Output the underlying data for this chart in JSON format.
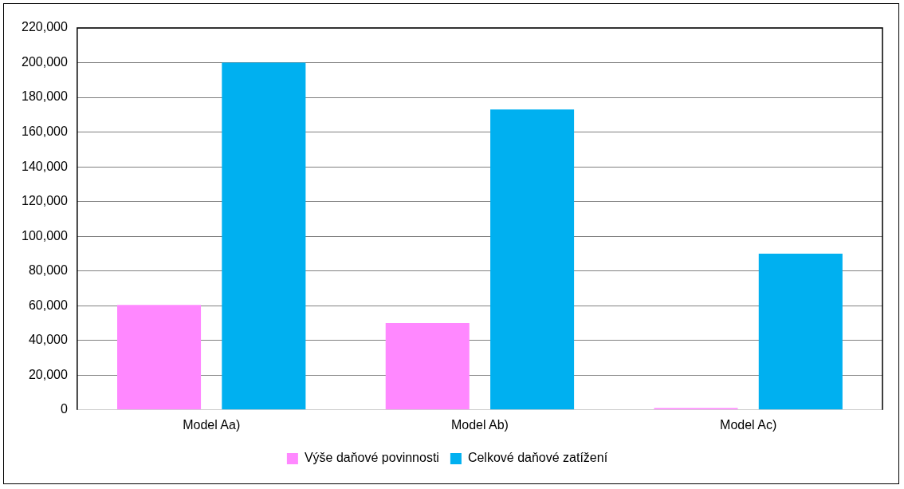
{
  "chart_data": {
    "type": "bar",
    "categories": [
      "Model Aa)",
      "Model Ab)",
      "Model Ac)"
    ],
    "series": [
      {
        "name": "Výše daňové povinnosti",
        "color": "#ff88ff",
        "values": [
          60500,
          50000,
          1000
        ]
      },
      {
        "name": "Celkové daňové zatížení",
        "color": "#00b0f0",
        "values": [
          200000,
          173000,
          90000
        ]
      }
    ],
    "ylim": [
      0,
      220000
    ],
    "yticks": [
      {
        "value": 0,
        "label": "0"
      },
      {
        "value": 20000,
        "label": "20,000"
      },
      {
        "value": 40000,
        "label": "40,000"
      },
      {
        "value": 60000,
        "label": "60,000"
      },
      {
        "value": 80000,
        "label": "80,000"
      },
      {
        "value": 100000,
        "label": "100,000"
      },
      {
        "value": 120000,
        "label": "120,000"
      },
      {
        "value": 140000,
        "label": "140,000"
      },
      {
        "value": 160000,
        "label": "160,000"
      },
      {
        "value": 180000,
        "label": "180,000"
      },
      {
        "value": 200000,
        "label": "200,000"
      },
      {
        "value": 220000,
        "label": "220,000"
      }
    ],
    "grid": "y",
    "legend": "bottom"
  }
}
